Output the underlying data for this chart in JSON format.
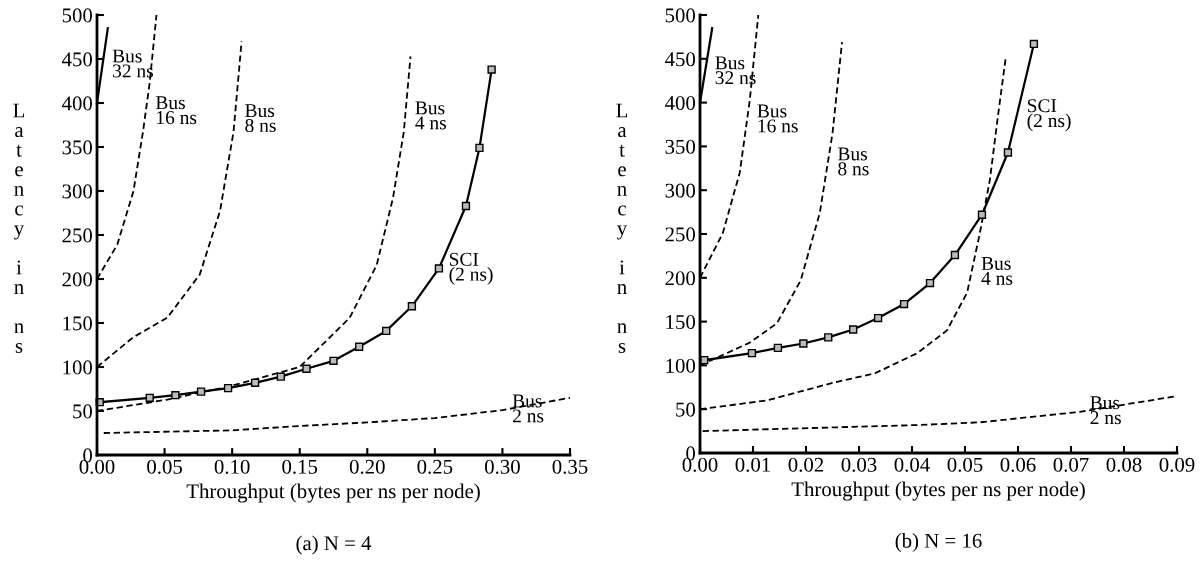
{
  "chart_data": [
    {
      "type": "line",
      "title": "(a) N = 4",
      "xlabel": "Throughput (bytes per ns per node)",
      "ylabel": "Latency in ns",
      "xlim": [
        0,
        0.35
      ],
      "ylim": [
        0,
        500
      ],
      "xticks": [
        {
          "value": 0,
          "label": "0.00"
        },
        {
          "value": 0.05,
          "label": "0.05"
        },
        {
          "value": 0.1,
          "label": "0.10"
        },
        {
          "value": 0.15,
          "label": "0.15"
        },
        {
          "value": 0.2,
          "label": "0.20"
        },
        {
          "value": 0.25,
          "label": "0.25"
        },
        {
          "value": 0.3,
          "label": "0.30"
        },
        {
          "value": 0.35,
          "label": "0.35"
        }
      ],
      "yticks": [
        0,
        50,
        100,
        150,
        200,
        250,
        300,
        350,
        400,
        450,
        500
      ],
      "grid": false,
      "legend": false,
      "series": [
        {
          "color": "#000000",
          "line_style": "solid",
          "marker": "none",
          "x": [
            0.0,
            0.008
          ],
          "values": [
            400,
            485
          ]
        },
        {
          "color": "#000000",
          "line_style": "dashed",
          "marker": "none",
          "x": [
            0.0,
            0.015,
            0.027,
            0.034,
            0.039,
            0.044
          ],
          "values": [
            200,
            239,
            300,
            367,
            423,
            500
          ]
        },
        {
          "color": "#000000",
          "line_style": "dashed",
          "marker": "none",
          "x": [
            0.0,
            0.027,
            0.052,
            0.076,
            0.091,
            0.101,
            0.107
          ],
          "values": [
            100,
            134,
            156,
            205,
            277,
            367,
            470
          ]
        },
        {
          "color": "#000000",
          "line_style": "dashed",
          "marker": "none",
          "x": [
            0.0,
            0.052,
            0.098,
            0.15,
            0.187,
            0.207,
            0.219,
            0.227,
            0.232
          ],
          "values": [
            50,
            63,
            78,
            100,
            156,
            216,
            292,
            367,
            453
          ]
        },
        {
          "color": "#000000",
          "line_style": "solid",
          "marker": "square",
          "x": [
            0.002,
            0.039,
            0.058,
            0.077,
            0.097,
            0.117,
            0.136,
            0.155,
            0.175,
            0.194,
            0.214,
            0.233,
            0.253,
            0.273,
            0.283,
            0.292
          ],
          "values": [
            60,
            65,
            68,
            72,
            76,
            82,
            89,
            98,
            107,
            123,
            141,
            169,
            212,
            283,
            349,
            438
          ]
        },
        {
          "color": "#000000",
          "line_style": "dashed",
          "marker": "none",
          "x": [
            0.005,
            0.1,
            0.15,
            0.2,
            0.25,
            0.3,
            0.35
          ],
          "values": [
            25,
            28,
            33,
            37,
            42,
            51,
            65
          ]
        }
      ],
      "annotations": [
        {
          "text": "Bus\n32 ns",
          "x": 0.004,
          "y": 443
        },
        {
          "text": "Bus\n16 ns",
          "x": 0.036,
          "y": 390
        },
        {
          "text": "Bus\n8 ns",
          "x": 0.102,
          "y": 381
        },
        {
          "text": "Bus\n4 ns",
          "x": 0.228,
          "y": 384
        },
        {
          "text": "SCI\n(2 ns)",
          "x": 0.253,
          "y": 212
        },
        {
          "text": "Bus\n2 ns",
          "x": 0.3,
          "y": 51
        }
      ]
    },
    {
      "type": "line",
      "title": "(b) N = 16",
      "xlabel": "Throughput (bytes per ns per node)",
      "ylabel": "Latency in ns",
      "xlim": [
        0,
        0.09
      ],
      "ylim": [
        0,
        500
      ],
      "xticks": [
        {
          "value": 0,
          "label": "0.00"
        },
        {
          "value": 0.01,
          "label": "0.01"
        },
        {
          "value": 0.02,
          "label": "0.02"
        },
        {
          "value": 0.03,
          "label": "0.03"
        },
        {
          "value": 0.04,
          "label": "0.04"
        },
        {
          "value": 0.05,
          "label": "0.05"
        },
        {
          "value": 0.06,
          "label": "0.06"
        },
        {
          "value": 0.07,
          "label": "0.07"
        },
        {
          "value": 0.08,
          "label": "0.08"
        },
        {
          "value": 0.09,
          "label": "0.09"
        }
      ],
      "yticks": [
        0,
        50,
        100,
        150,
        200,
        250,
        300,
        350,
        400,
        450,
        500
      ],
      "grid": false,
      "legend": false,
      "series": [
        {
          "color": "#000000",
          "line_style": "solid",
          "marker": "none",
          "x": [
            0.0,
            0.0023
          ],
          "values": [
            400,
            485
          ]
        },
        {
          "color": "#000000",
          "line_style": "dashed",
          "marker": "none",
          "x": [
            0.0,
            0.0043,
            0.0075,
            0.0094,
            0.011
          ],
          "values": [
            200,
            251,
            320,
            403,
            500
          ]
        },
        {
          "color": "#000000",
          "line_style": "dashed",
          "marker": "none",
          "x": [
            0.0,
            0.0094,
            0.0145,
            0.019,
            0.0226,
            0.025,
            0.0268
          ],
          "values": [
            100,
            126,
            148,
            197,
            274,
            365,
            469
          ]
        },
        {
          "color": "#000000",
          "line_style": "dashed",
          "marker": "none",
          "x": [
            0.0,
            0.0126,
            0.025,
            0.033,
            0.041,
            0.0466,
            0.0504,
            0.0528,
            0.0547,
            0.0562,
            0.0577
          ],
          "values": [
            50,
            60,
            80,
            91,
            114,
            140,
            183,
            251,
            312,
            384,
            452
          ]
        },
        {
          "color": "#000000",
          "line_style": "solid",
          "marker": "square",
          "x": [
            0.0008,
            0.0098,
            0.0147,
            0.0195,
            0.0242,
            0.0289,
            0.0336,
            0.0385,
            0.0434,
            0.0481,
            0.0532,
            0.0581,
            0.063
          ],
          "values": [
            106,
            114,
            120,
            125,
            132,
            141,
            154,
            170,
            194,
            226,
            272,
            343,
            467
          ]
        },
        {
          "color": "#000000",
          "line_style": "dashed",
          "marker": "none",
          "x": [
            0.0005,
            0.0415,
            0.0528,
            0.0717,
            0.09
          ],
          "values": [
            25,
            32,
            35,
            47,
            65
          ]
        }
      ],
      "annotations": [
        {
          "text": "Bus\n32 ns",
          "x": 0.00095,
          "y": 435
        },
        {
          "text": "Bus\n16 ns",
          "x": 0.0089,
          "y": 380
        },
        {
          "text": "Bus\n8 ns",
          "x": 0.0241,
          "y": 331
        },
        {
          "text": "Bus\n4 ns",
          "x": 0.0512,
          "y": 206
        },
        {
          "text": "SCI\n(2 ns)",
          "x": 0.0598,
          "y": 386
        },
        {
          "text": "Bus\n2 ns",
          "x": 0.0717,
          "y": 47
        }
      ]
    }
  ]
}
